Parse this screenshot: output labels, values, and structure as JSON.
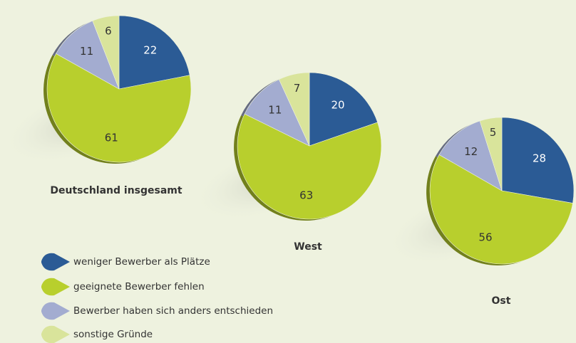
{
  "legend": {
    "labels": [
      "weniger Bewerber als Plätze",
      "geeignete Bewerber fehlen",
      "Bewerber haben sich anders entschieden",
      "sonstige Gründe"
    ],
    "colors": [
      "#2b5b95",
      "#b8cf2d",
      "#a3acd0",
      "#d9e49b"
    ]
  },
  "chart_data": [
    {
      "type": "pie",
      "title": "Deutschland insgesamt",
      "values": [
        22,
        61,
        11,
        6
      ]
    },
    {
      "type": "pie",
      "title": "West",
      "values": [
        20,
        63,
        11,
        7
      ]
    },
    {
      "type": "pie",
      "title": "Ost",
      "values": [
        28,
        56,
        12,
        5
      ]
    }
  ]
}
